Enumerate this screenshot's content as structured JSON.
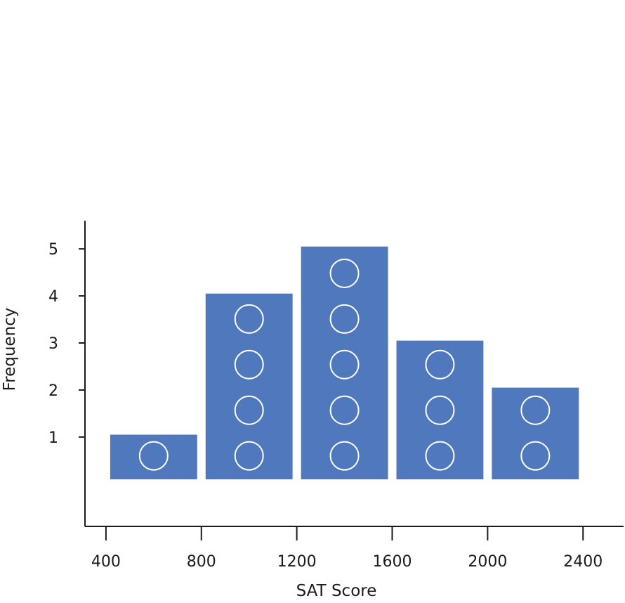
{
  "chart_data": {
    "type": "bar",
    "title": "",
    "xlabel": "SAT Score",
    "ylabel": "Frequency",
    "bins": [
      {
        "from": 400,
        "to": 800,
        "count": 1
      },
      {
        "from": 800,
        "to": 1200,
        "count": 4
      },
      {
        "from": 1200,
        "to": 1600,
        "count": 5
      },
      {
        "from": 1600,
        "to": 2000,
        "count": 3
      },
      {
        "from": 2000,
        "to": 2400,
        "count": 2
      }
    ],
    "x_ticks": [
      "400",
      "800",
      "1200",
      "1600",
      "2000",
      "2400"
    ],
    "y_ticks": [
      "1",
      "2",
      "3",
      "4",
      "5"
    ],
    "xlim": [
      312,
      2570
    ],
    "ylim": [
      -0.9,
      5.6
    ],
    "grid": false,
    "legend": "none",
    "markers": "one circle per observation",
    "colors": {
      "bar": "#4f78bd",
      "marker": "#ffffff",
      "axis": "#1a1a1a"
    }
  }
}
